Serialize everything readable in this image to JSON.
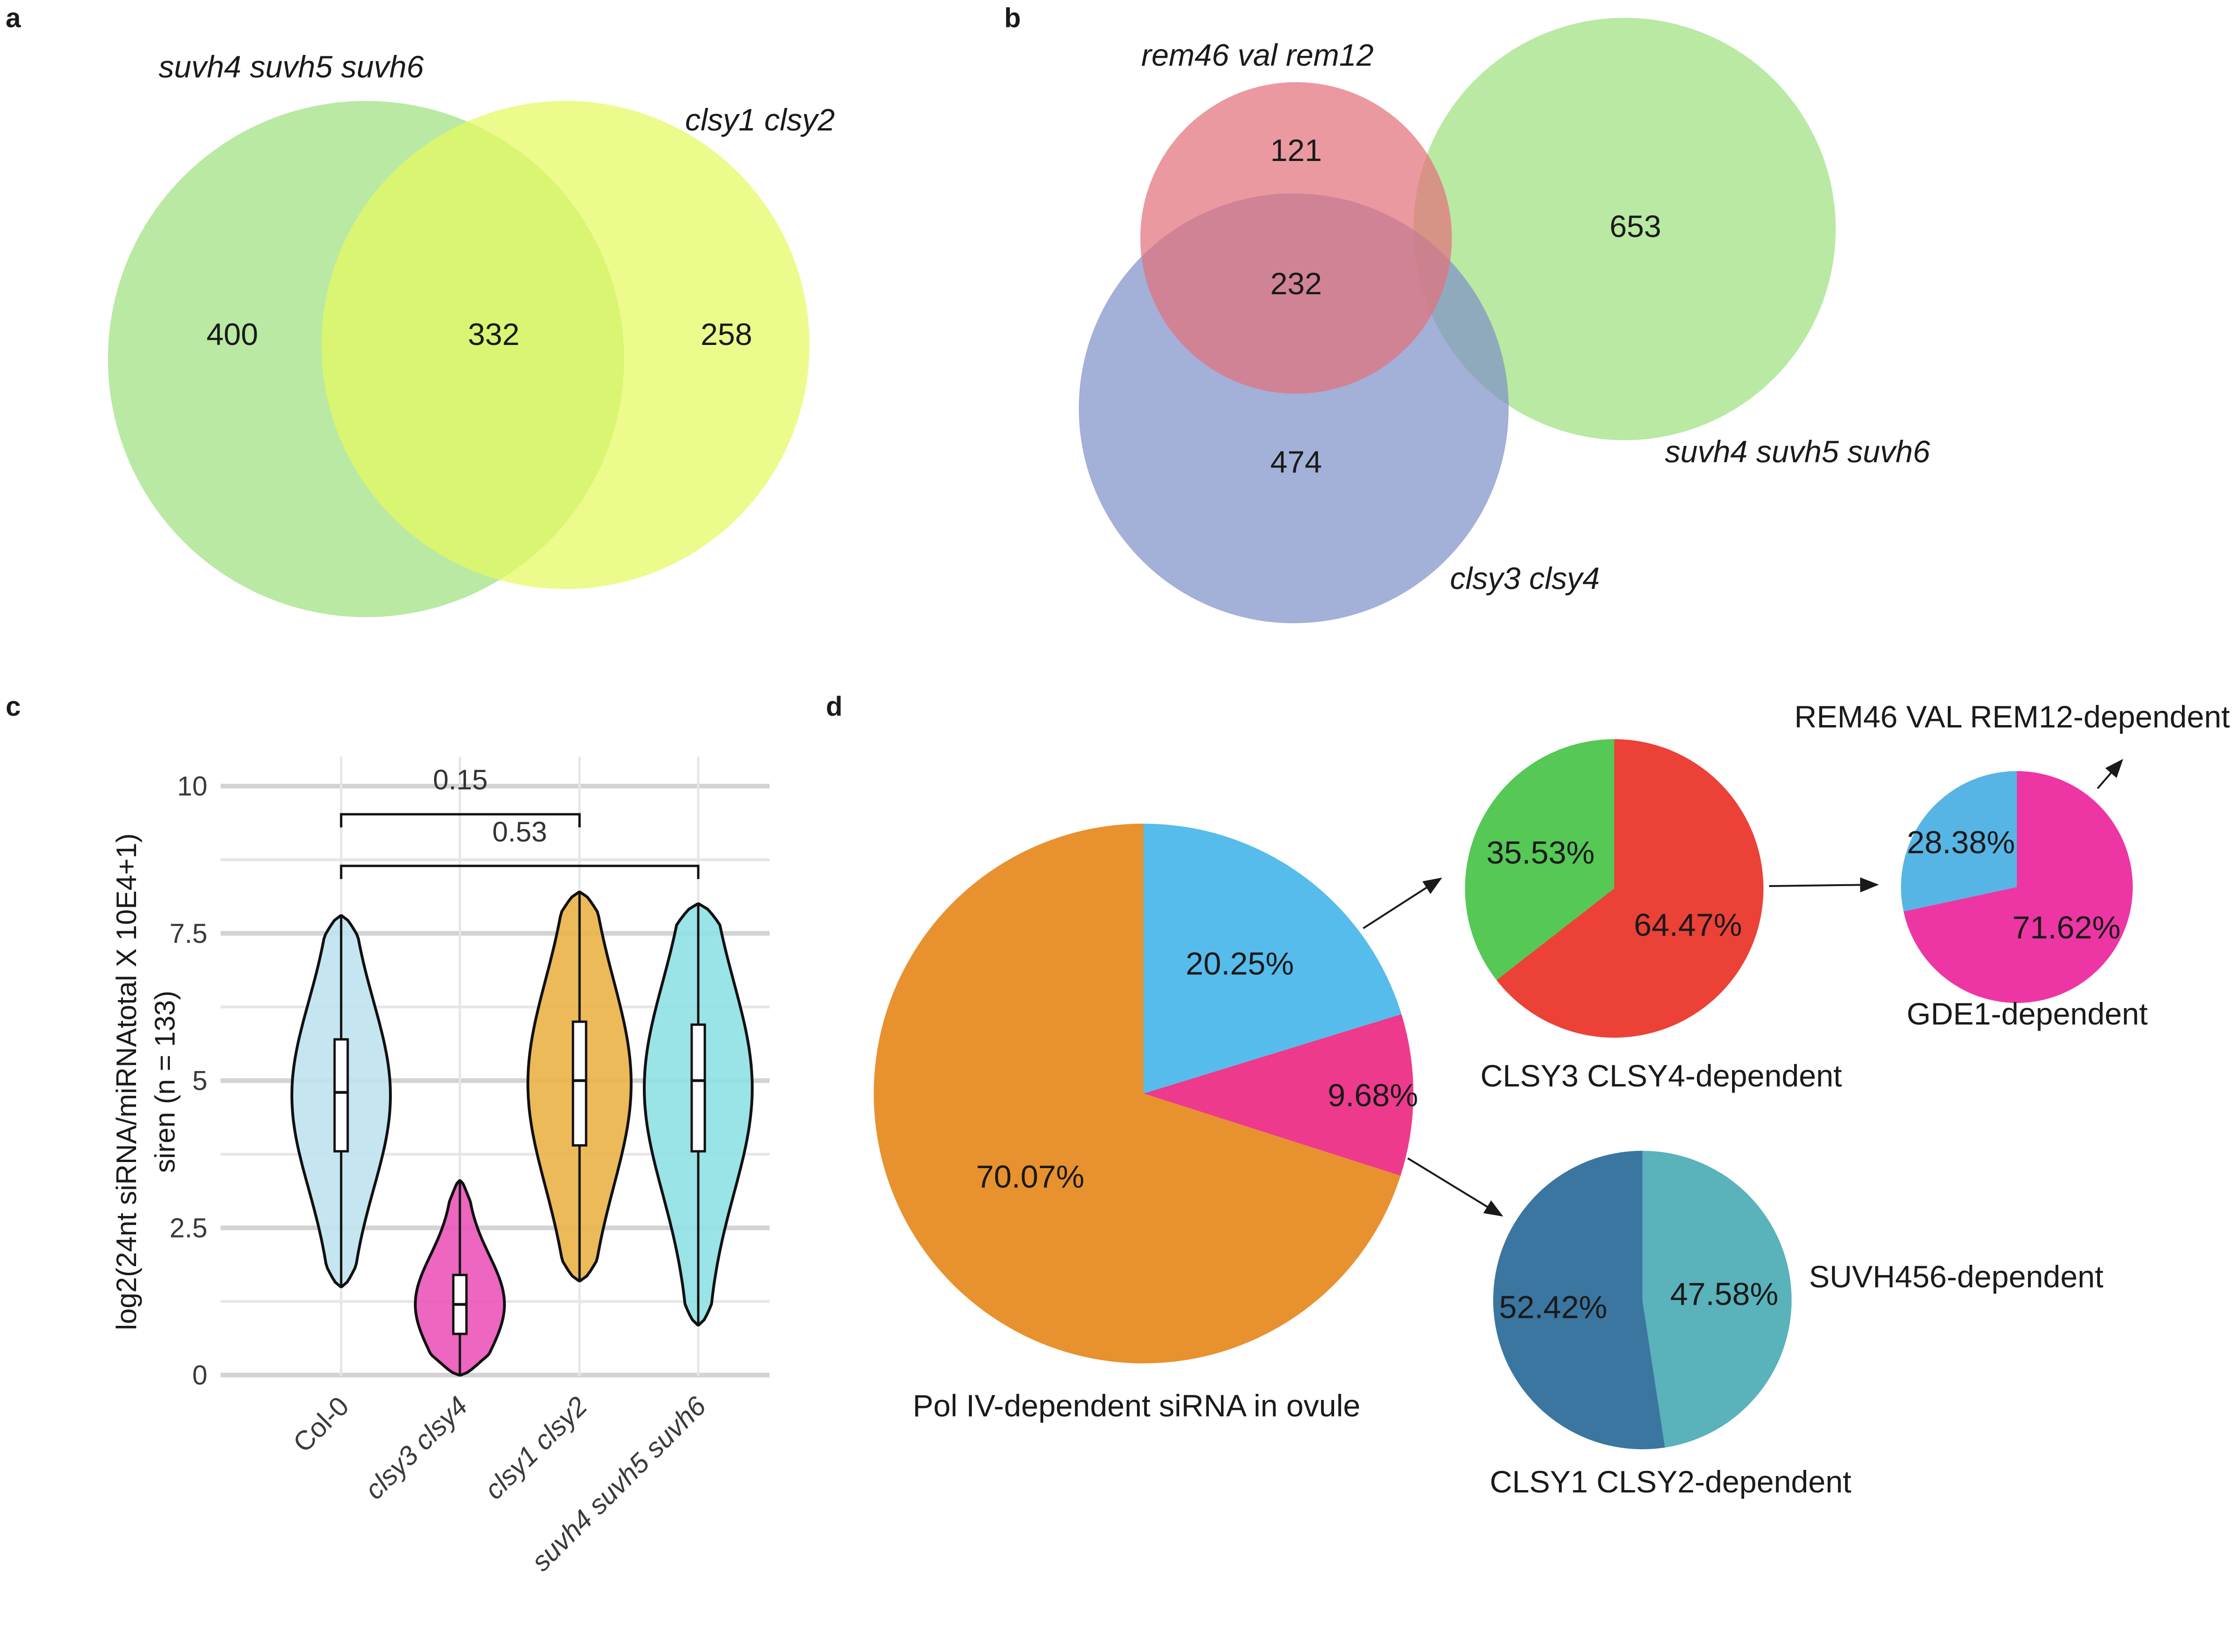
{
  "panels": {
    "a": "a",
    "b": "b",
    "c": "c",
    "d": "d"
  },
  "chart_data": [
    {
      "id": "a",
      "type": "venn",
      "sets": [
        {
          "label": "suvh4 suvh5 suvh6",
          "color": "#9EE07F"
        },
        {
          "label": "clsy1 clsy2",
          "color": "#E4F95F"
        }
      ],
      "regions": {
        "only_suvh": "400",
        "shared": "332",
        "only_clsy12": "258"
      }
    },
    {
      "id": "b",
      "type": "venn",
      "sets": [
        {
          "label": "rem46 val rem12",
          "color": "#E3727D"
        },
        {
          "label": "suvh4 suvh5 suvh6",
          "color": "#9EE07F"
        },
        {
          "label": "clsy3 clsy4",
          "color": "#7F91C8"
        }
      ],
      "regions": {
        "only_rem": "121",
        "rem_clsy34": "232",
        "only_suvh": "653",
        "only_clsy34": "474"
      }
    },
    {
      "id": "c",
      "type": "violin",
      "ylabel_line1": "log2(24nt siRNA/miRNAtotal X 10E4+1)",
      "ylabel_line2": "siren (n = 133)",
      "ylim": [
        0,
        10.5
      ],
      "yticks": [
        0,
        2.5,
        5,
        7.5,
        10
      ],
      "ytick_labels": [
        "0",
        "2.5",
        "5",
        "7.5",
        "10"
      ],
      "categories": [
        "Col-0",
        "clsy3 clsy4",
        "clsy1 clsy2",
        "suvh4 suvh5 suvh6"
      ],
      "series": [
        {
          "name": "Col-0",
          "color": "#BFE3EE",
          "min": 1.5,
          "q1": 3.8,
          "median": 4.8,
          "q3": 5.7,
          "max": 7.8
        },
        {
          "name": "clsy3 clsy4",
          "color": "#EB55B9",
          "min": 0.0,
          "q1": 0.7,
          "median": 1.2,
          "q3": 1.7,
          "max": 3.3
        },
        {
          "name": "clsy1 clsy2",
          "color": "#EAB347",
          "min": 1.6,
          "q1": 3.9,
          "median": 5.0,
          "q3": 6.0,
          "max": 8.2
        },
        {
          "name": "suvh4 suvh5 suvh6",
          "color": "#8FE0E4",
          "min": 0.85,
          "q1": 3.8,
          "median": 5.0,
          "q3": 5.95,
          "max": 8.0
        }
      ],
      "comparisons": [
        {
          "groups": [
            "Col-0",
            "clsy1 clsy2"
          ],
          "p": "0.15"
        },
        {
          "groups": [
            "Col-0",
            "suvh4 suvh5 suvh6"
          ],
          "p": "0.53"
        }
      ]
    },
    {
      "id": "d",
      "type": "pie",
      "pies": [
        {
          "name": "main",
          "caption": "Pol IV-dependent siRNA in ovule",
          "slices": [
            {
              "label": "20.25%",
              "value": 20.25,
              "color": "#56BCEC"
            },
            {
              "label": "9.68%",
              "value": 9.68,
              "color": "#EE3A8C"
            },
            {
              "label": "70.07%",
              "value": 70.07,
              "color": "#E8912F"
            }
          ]
        },
        {
          "name": "clsy34",
          "caption": "CLSY3 CLSY4-dependent",
          "slices": [
            {
              "label": "64.47%",
              "value": 64.47,
              "color": "#EC4137"
            },
            {
              "label": "35.53%",
              "value": 35.53,
              "color": "#55C855"
            }
          ]
        },
        {
          "name": "rem",
          "caption_top": "REM46 VAL REM12-dependent",
          "caption_bottom": "GDE1-dependent",
          "slices": [
            {
              "label": "71.62%",
              "value": 71.62,
              "color": "#EE35A4"
            },
            {
              "label": "28.38%",
              "value": 28.38,
              "color": "#56B5E5"
            }
          ]
        },
        {
          "name": "clsy12",
          "caption_side": "SUVH456-dependent",
          "caption": "CLSY1 CLSY2-dependent",
          "slices": [
            {
              "label": "47.58%",
              "value": 47.58,
              "color": "#5AB2BB"
            },
            {
              "label": "52.42%",
              "value": 52.42,
              "color": "#3A76A0"
            }
          ]
        }
      ]
    }
  ]
}
